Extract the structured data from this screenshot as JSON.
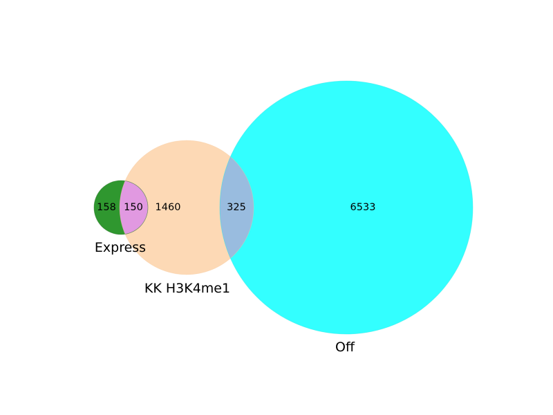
{
  "diagram": {
    "type": "venn3",
    "sets": [
      {
        "name": "Express",
        "color": "#2ca02c"
      },
      {
        "name": "KK H3K4me1",
        "color": "#fdd9b5"
      },
      {
        "name": "Off",
        "color": "#33ffff"
      }
    ],
    "regions": {
      "express_only": "158",
      "express_kk": "150",
      "kk_only": "1460",
      "kk_off": "325",
      "off_only": "6533"
    },
    "colors": {
      "express_only": "#2f972f",
      "express_kk": "#e199e1",
      "kk_only": "#fdd9b5",
      "kk_off": "#99bcdf",
      "off_only": "#33ffff"
    }
  }
}
